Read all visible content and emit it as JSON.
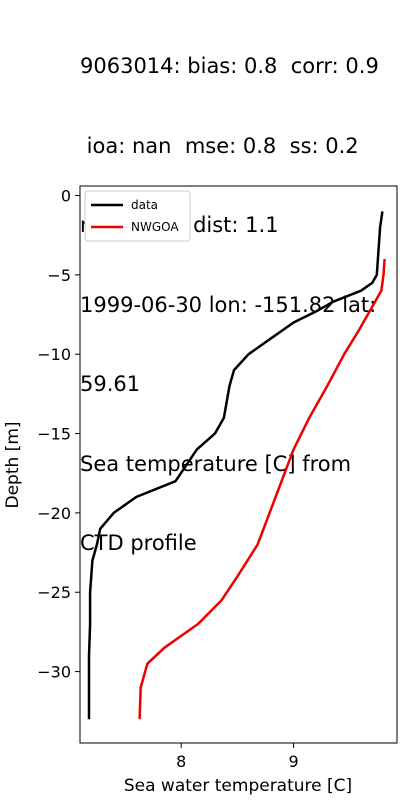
{
  "title_lines": [
    "9063014: bias: 0.8  corr: 0.9",
    " ioa: nan  mse: 0.8  ss: 0.2",
    "rmse: 0.9  dist: 1.1",
    "1999-06-30 lon: -151.82 lat:",
    "59.61",
    "Sea temperature [C] from",
    "CTD profile"
  ],
  "chart_data": {
    "type": "line",
    "xlabel": "Sea water temperature [C]",
    "ylabel": "Depth [m]",
    "xlim": [
      7.1,
      9.92
    ],
    "ylim": [
      -34.5,
      0.6
    ],
    "xticks": [
      8,
      9
    ],
    "yticks": [
      0,
      -5,
      -10,
      -15,
      -20,
      -25,
      -30
    ],
    "ytick_labels": [
      "0",
      "−5",
      "−10",
      "−15",
      "−20",
      "−25",
      "−30"
    ],
    "grid": false,
    "legend_position": "top-left",
    "series": [
      {
        "name": "data",
        "color": "#000000",
        "points": [
          [
            9.79,
            -1
          ],
          [
            9.77,
            -2
          ],
          [
            9.76,
            -3
          ],
          [
            9.75,
            -4
          ],
          [
            9.74,
            -5
          ],
          [
            9.7,
            -5.5
          ],
          [
            9.6,
            -6
          ],
          [
            9.35,
            -6.7
          ],
          [
            9.2,
            -7.3
          ],
          [
            9.0,
            -8
          ],
          [
            8.8,
            -9
          ],
          [
            8.6,
            -10
          ],
          [
            8.47,
            -11
          ],
          [
            8.43,
            -12
          ],
          [
            8.38,
            -14
          ],
          [
            8.3,
            -15
          ],
          [
            8.14,
            -16
          ],
          [
            7.95,
            -18
          ],
          [
            7.6,
            -19
          ],
          [
            7.4,
            -20
          ],
          [
            7.28,
            -21
          ],
          [
            7.25,
            -22
          ],
          [
            7.21,
            -23
          ],
          [
            7.19,
            -25
          ],
          [
            7.19,
            -27
          ],
          [
            7.18,
            -29
          ],
          [
            7.18,
            -31
          ],
          [
            7.18,
            -33
          ]
        ]
      },
      {
        "name": "NWGOA",
        "color": "#ee0000",
        "points": [
          [
            9.81,
            -4
          ],
          [
            9.8,
            -5
          ],
          [
            9.78,
            -6
          ],
          [
            9.7,
            -7
          ],
          [
            9.58,
            -8.5
          ],
          [
            9.45,
            -10
          ],
          [
            9.3,
            -12
          ],
          [
            9.14,
            -14
          ],
          [
            9.0,
            -16
          ],
          [
            8.84,
            -19
          ],
          [
            8.68,
            -22
          ],
          [
            8.5,
            -24
          ],
          [
            8.36,
            -25.5
          ],
          [
            8.15,
            -27
          ],
          [
            7.85,
            -28.5
          ],
          [
            7.7,
            -29.5
          ],
          [
            7.64,
            -31
          ],
          [
            7.63,
            -33
          ]
        ]
      }
    ]
  }
}
